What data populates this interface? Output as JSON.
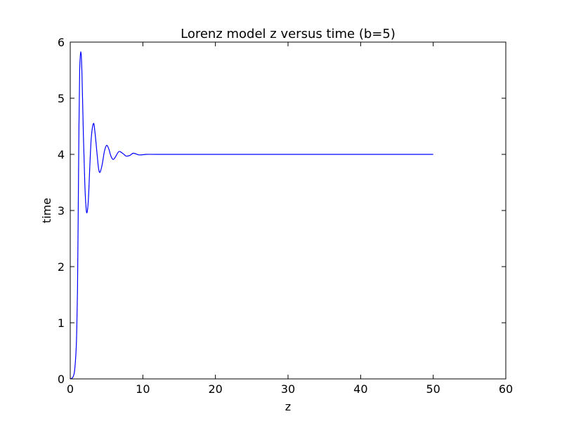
{
  "chart_data": {
    "type": "line",
    "title": "Lorenz model z versus time (b=5)",
    "xlabel": "z",
    "ylabel": "time",
    "xlim": [
      0,
      60
    ],
    "ylim": [
      0,
      6
    ],
    "xticks": [
      0,
      10,
      20,
      30,
      40,
      50,
      60
    ],
    "yticks": [
      0,
      1,
      2,
      3,
      4,
      5,
      6
    ],
    "grid": false,
    "series": [
      {
        "color": "#0000ff",
        "points": [
          [
            0,
            0
          ],
          [
            0.2,
            0.01
          ],
          [
            0.4,
            0.04
          ],
          [
            0.6,
            0.15
          ],
          [
            0.8,
            0.5
          ],
          [
            0.9,
            0.9
          ],
          [
            1.0,
            1.6
          ],
          [
            1.1,
            3.0
          ],
          [
            1.2,
            4.5
          ],
          [
            1.3,
            5.5
          ],
          [
            1.45,
            5.83
          ],
          [
            1.6,
            5.5
          ],
          [
            1.8,
            4.4
          ],
          [
            2.0,
            3.5
          ],
          [
            2.15,
            3.1
          ],
          [
            2.3,
            2.96
          ],
          [
            2.5,
            3.2
          ],
          [
            2.7,
            3.8
          ],
          [
            2.9,
            4.3
          ],
          [
            3.2,
            4.55
          ],
          [
            3.4,
            4.4
          ],
          [
            3.7,
            4.0
          ],
          [
            3.9,
            3.75
          ],
          [
            4.1,
            3.68
          ],
          [
            4.4,
            3.82
          ],
          [
            4.7,
            4.05
          ],
          [
            5.0,
            4.16
          ],
          [
            5.3,
            4.1
          ],
          [
            5.6,
            3.97
          ],
          [
            5.9,
            3.91
          ],
          [
            6.2,
            3.95
          ],
          [
            6.7,
            4.05
          ],
          [
            7.2,
            4.02
          ],
          [
            7.7,
            3.97
          ],
          [
            8.2,
            3.98
          ],
          [
            8.7,
            4.02
          ],
          [
            9.5,
            3.99
          ],
          [
            10.5,
            4.0
          ],
          [
            12,
            4.0
          ],
          [
            20,
            4.0
          ],
          [
            30,
            4.0
          ],
          [
            40,
            4.0
          ],
          [
            50,
            4.0
          ]
        ]
      }
    ]
  }
}
